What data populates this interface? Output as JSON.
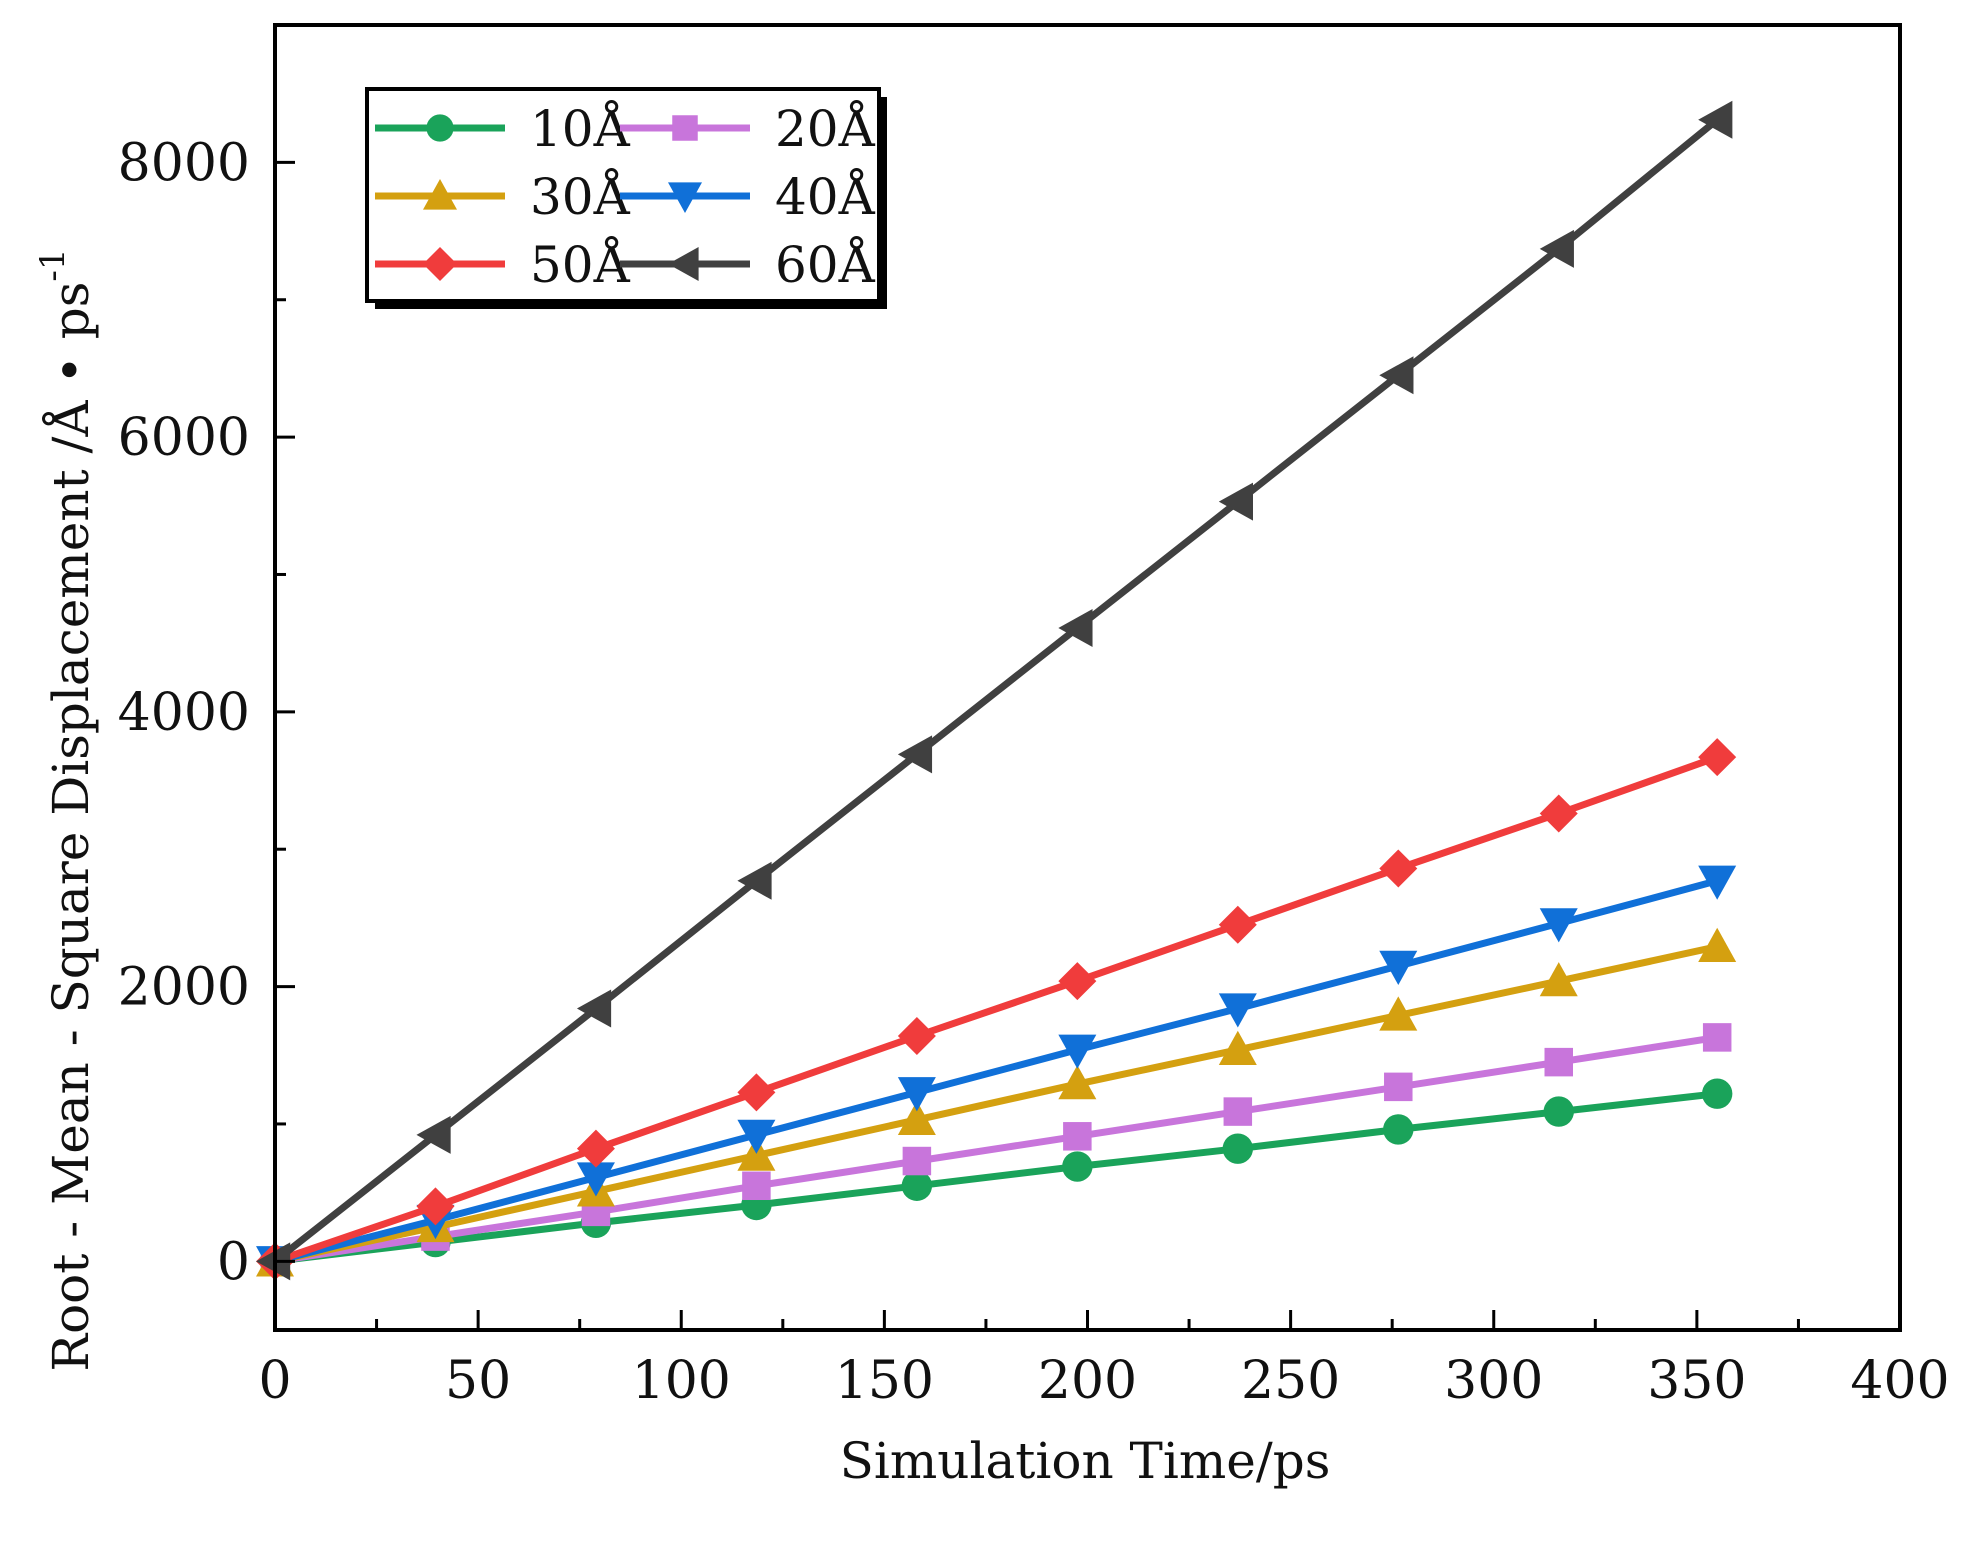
{
  "chart_data": {
    "type": "line",
    "title": "",
    "xlabel": "Simulation Time/ps",
    "ylabel": "Root - Mean - Square Displacement /Å • ps",
    "ylabel_superscript": "-1",
    "xlim": [
      0,
      400
    ],
    "ylim": [
      -500,
      9000
    ],
    "xticks": [
      0,
      50,
      100,
      150,
      200,
      250,
      300,
      350,
      400
    ],
    "yticks": [
      0,
      2000,
      4000,
      6000,
      8000
    ],
    "xtick_labels": [
      "0",
      "50",
      "100",
      "150",
      "200",
      "250",
      "300",
      "350",
      "400"
    ],
    "ytick_labels": [
      "0",
      "2000",
      "4000",
      "6000",
      "8000"
    ],
    "grid": false,
    "legend_position": "top-left",
    "x": [
      0,
      39.5,
      79,
      118.5,
      158,
      197.5,
      237,
      276.5,
      316,
      355
    ],
    "series": [
      {
        "name": "10Å",
        "color": "#1aa35a",
        "marker": "circle",
        "values": [
          0,
          140,
          280,
          410,
          550,
          690,
          820,
          960,
          1090,
          1220
        ]
      },
      {
        "name": "20Å",
        "color": "#c875db",
        "marker": "square",
        "values": [
          0,
          180,
          360,
          550,
          730,
          910,
          1090,
          1270,
          1450,
          1630
        ]
      },
      {
        "name": "30Å",
        "color": "#d4a010",
        "marker": "triangle-up",
        "values": [
          0,
          250,
          510,
          770,
          1030,
          1290,
          1540,
          1790,
          2040,
          2290
        ]
      },
      {
        "name": "40Å",
        "color": "#1070d8",
        "marker": "triangle-down",
        "values": [
          0,
          300,
          610,
          920,
          1230,
          1540,
          1840,
          2150,
          2460,
          2770
        ]
      },
      {
        "name": "50Å",
        "color": "#f03c3c",
        "marker": "diamond",
        "values": [
          0,
          400,
          820,
          1230,
          1640,
          2040,
          2450,
          2860,
          3260,
          3670
        ]
      },
      {
        "name": "60Å",
        "color": "#404040",
        "marker": "triangle-left",
        "values": [
          0,
          920,
          1840,
          2770,
          3690,
          4610,
          5530,
          6450,
          7370,
          8310
        ]
      }
    ]
  }
}
